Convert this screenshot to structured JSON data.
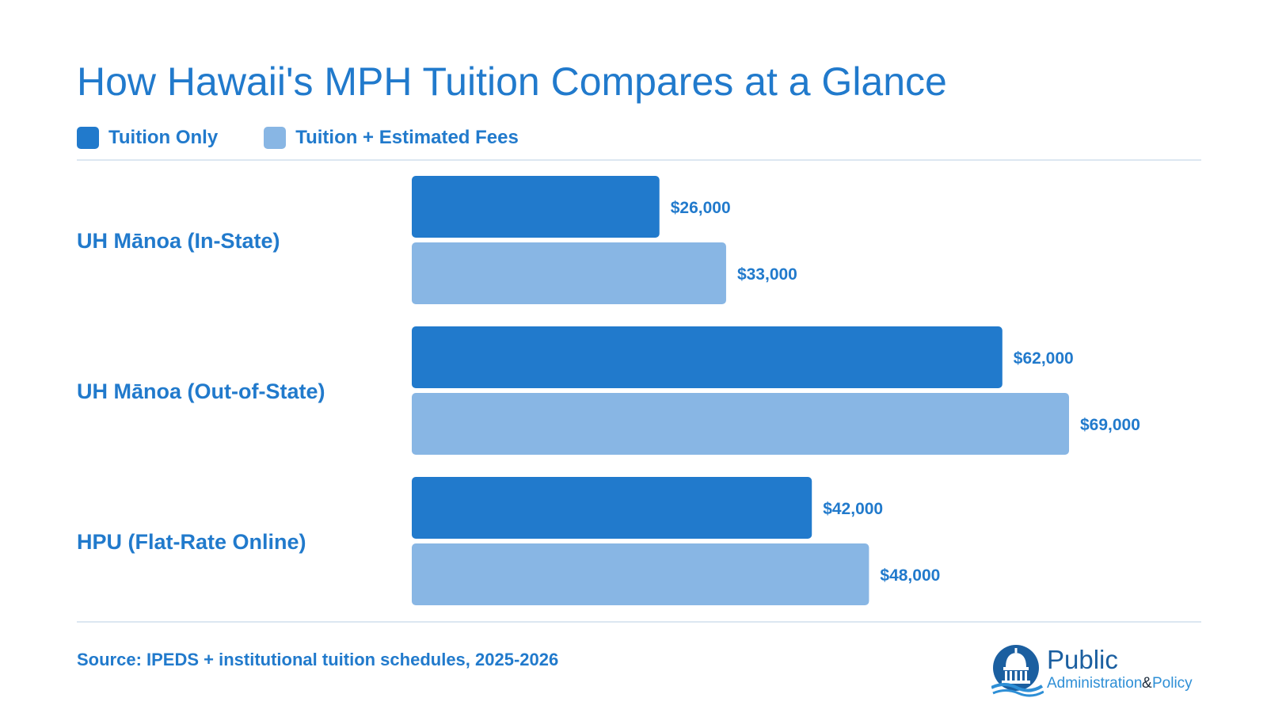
{
  "colors": {
    "primary": "#217ACC",
    "tuition_only": "#217ACC",
    "tuition_fees": "#88B6E4",
    "rule": "#DCE7F1"
  },
  "chart_data": {
    "type": "bar",
    "orientation": "horizontal",
    "title": "How Hawaii's MPH Tuition Compares at a Glance",
    "categories": [
      "UH Mānoa (In-State)",
      "UH Mānoa (Out-of-State)",
      "HPU (Flat-Rate Online)"
    ],
    "series": [
      {
        "name": "Tuition Only",
        "values": [
          26000,
          62000,
          42000
        ],
        "labels": [
          "$26,000",
          "$62,000",
          "$42,000"
        ],
        "color": "#217ACC"
      },
      {
        "name": "Tuition + Estimated Fees",
        "values": [
          33000,
          69000,
          48000
        ],
        "labels": [
          "$33,000",
          "$69,000",
          "$48,000"
        ],
        "color": "#88B6E4"
      }
    ],
    "xlim": [
      0,
      69000
    ],
    "grid": false,
    "legend_position": "top-left"
  },
  "source": "Source: IPEDS + institutional tuition schedules, 2025-2026",
  "logo": {
    "line1": "Public",
    "line2": "Administration",
    "amp": "&",
    "line3": "Policy"
  }
}
